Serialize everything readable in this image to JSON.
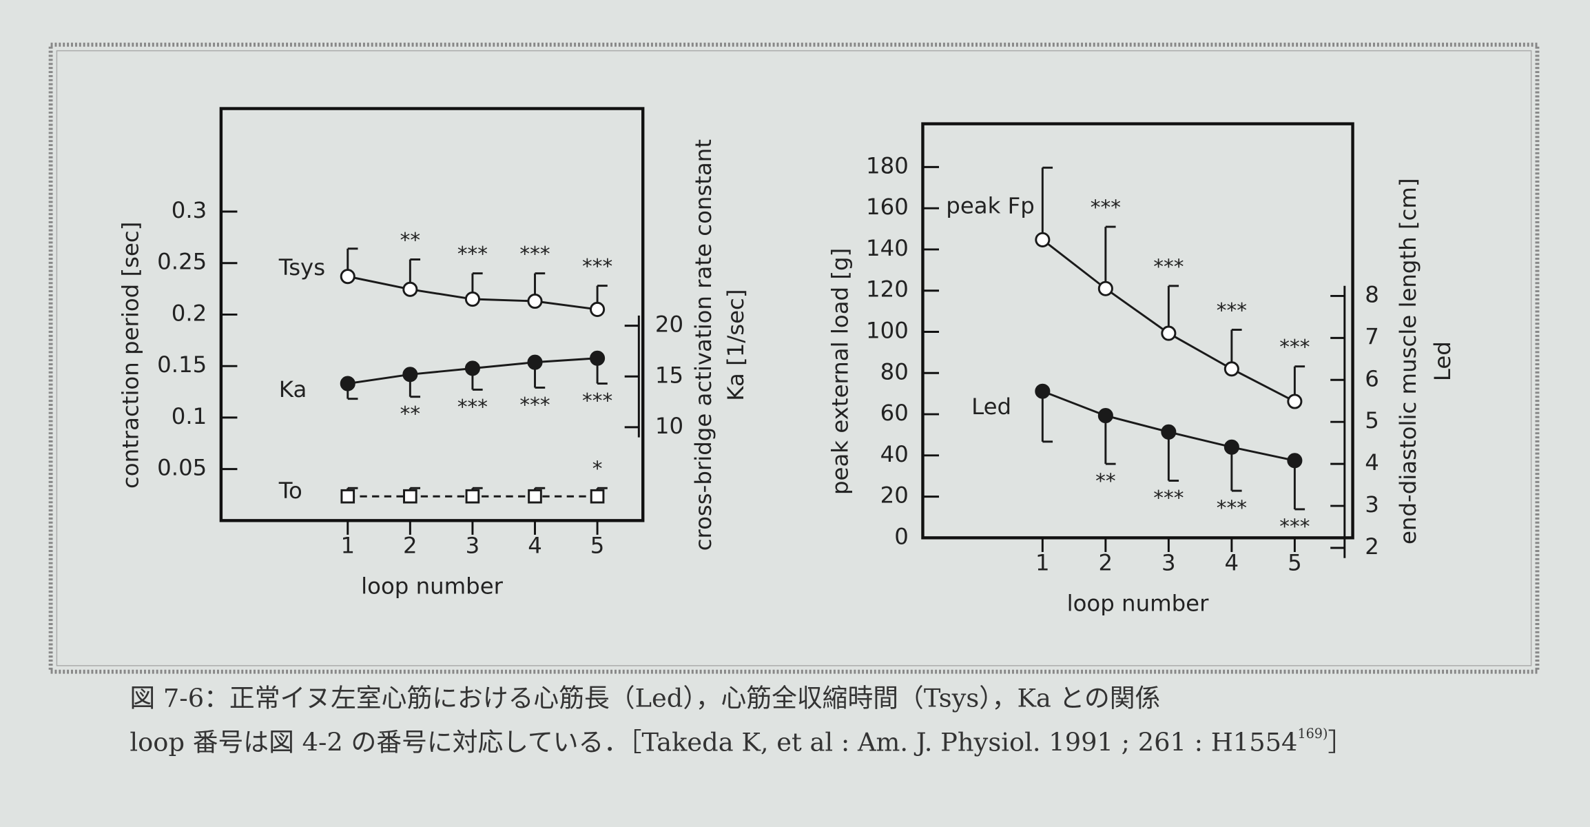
{
  "chart_data": [
    {
      "type": "line",
      "xlabel": "loop number",
      "ylabel": "contraction period [sec]",
      "y2label": [
        "cross-bridge activation rate constant",
        "Ka [1/sec]"
      ],
      "x": [
        1,
        2,
        3,
        4,
        5
      ],
      "xlim": [
        -1.03,
        5.73
      ],
      "xticks": [
        1,
        2,
        3,
        4,
        5
      ],
      "ylim": [
        0,
        0.4
      ],
      "yticks": [
        0.05,
        0.1,
        0.15,
        0.2,
        0.25,
        0.3
      ],
      "y2lim": [
        0.8,
        41.4
      ],
      "y2ticks": [
        10,
        15,
        20
      ],
      "series": [
        {
          "name": "Tsys",
          "color": "#1a1a1a",
          "marker": "open-circle",
          "values": [
            0.237,
            0.2245,
            0.215,
            0.213,
            0.205
          ],
          "errors": [
            0.027,
            0.029,
            0.025,
            0.027,
            0.023
          ],
          "error_direction": "up",
          "significance": [
            null,
            "**",
            "***",
            "***",
            "***"
          ]
        },
        {
          "name": "Ka",
          "color": "#1a1a1a",
          "marker": "filled-circle",
          "axis": "y2",
          "values": [
            14.3,
            15.2,
            15.8,
            16.4,
            16.8
          ],
          "errors": [
            1.5,
            2.2,
            2.1,
            2.5,
            2.5
          ],
          "error_direction": "down",
          "significance": [
            null,
            "**",
            "***",
            "***",
            "***"
          ]
        },
        {
          "name": "To",
          "color": "#1a1a1a",
          "marker": "open-square",
          "dashed": true,
          "values": [
            0.0235,
            0.0235,
            0.0235,
            0.0235,
            0.0235
          ],
          "errors": [
            0.008,
            0.008,
            0.008,
            0.008,
            0.008
          ],
          "error_direction": "up",
          "significance": [
            null,
            null,
            null,
            null,
            "*"
          ]
        }
      ]
    },
    {
      "type": "line",
      "xlabel": "loop number",
      "ylabel": "peak external load [g]",
      "y2label": [
        "end-diastolic muscle length [cm]",
        "Led"
      ],
      "x": [
        1,
        2,
        3,
        4,
        5
      ],
      "xlim": [
        -0.9,
        5.92
      ],
      "xticks": [
        1,
        2,
        3,
        4,
        5
      ],
      "ylim": [
        0,
        201
      ],
      "yticks": [
        0,
        20,
        40,
        60,
        80,
        100,
        120,
        140,
        160,
        180
      ],
      "y2lim": [
        2.24,
        12.1
      ],
      "y2ticks": [
        2,
        3,
        4,
        5,
        6,
        7,
        8
      ],
      "series": [
        {
          "name": "peak Fp",
          "color": "#1a1a1a",
          "marker": "open-circle",
          "values": [
            144.7,
            121,
            99.3,
            82,
            66.2
          ],
          "errors": [
            35,
            30,
            23,
            19,
            17
          ],
          "error_direction": "up",
          "significance": [
            null,
            "***",
            "***",
            "***",
            "***"
          ]
        },
        {
          "name": "Led",
          "color": "#1a1a1a",
          "marker": "filled-circle",
          "axis": "y2",
          "values": [
            5.73,
            5.15,
            4.76,
            4.4,
            4.08
          ],
          "errors": [
            1.2,
            1.15,
            1.16,
            1.04,
            1.16
          ],
          "error_direction": "down",
          "significance": [
            null,
            "**",
            "***",
            "***",
            "***"
          ]
        }
      ]
    }
  ],
  "caption": [
    "図 7-6：正常イヌ左室心筋における心筋長（Led），心筋全収縮時間（Tsys），Ka との関係",
    "loop 番号は図 4-2 の番号に対応している．［Takeda K, et al : Am. J. Physiol. 1991 ; 261 : H1554",
    "169)",
    "］"
  ]
}
